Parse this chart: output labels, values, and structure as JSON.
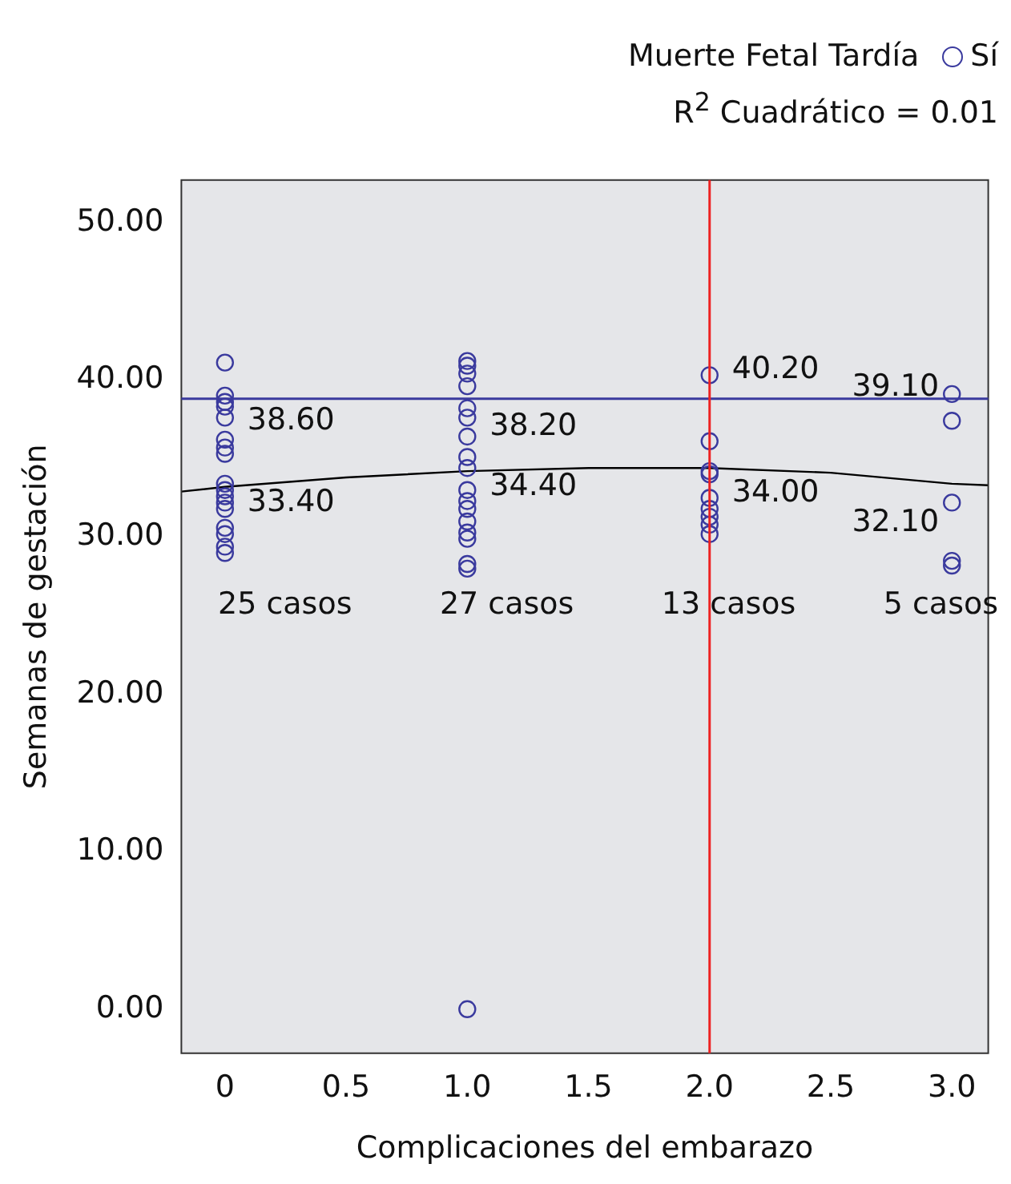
{
  "chart_data": {
    "type": "scatter",
    "xlabel": "Complicaciones del embarazo",
    "ylabel": "Semanas de gestación",
    "legend_title": "Muerte Fetal Tardía",
    "legend": "top right",
    "marker": "circle",
    "grid": false,
    "xlim": [
      -0.18,
      3.15
    ],
    "xticks": [
      0,
      0.5,
      {
        "value": 1,
        "label": "1.0"
      },
      1.5,
      {
        "value": 2,
        "label": "2.0"
      },
      2.5,
      {
        "value": 3,
        "label": "3.0"
      }
    ],
    "ylim": [
      -2.8,
      52.7
    ],
    "yticks": [
      {
        "value": 0,
        "label": "0.00"
      },
      {
        "value": 10,
        "label": "10.00"
      },
      {
        "value": 20,
        "label": "20.00"
      },
      {
        "value": 30,
        "label": "30.00"
      },
      {
        "value": 40,
        "label": "40.00"
      },
      {
        "value": 50,
        "label": "50.00"
      }
    ],
    "series": [
      {
        "name": "Sí",
        "color": "#3a3a9e",
        "x": [
          0,
          0,
          0,
          0,
          0,
          0,
          0,
          0,
          0,
          0,
          0,
          0,
          0,
          0,
          0,
          0,
          0,
          1,
          1,
          1,
          1,
          1,
          1,
          1,
          1,
          1,
          1,
          1,
          1,
          1,
          1,
          1,
          1,
          1,
          1,
          2,
          2,
          2,
          2,
          2,
          2,
          2,
          2,
          2,
          3,
          3,
          3,
          3,
          3
        ],
        "values": [
          41.1,
          39.0,
          38.6,
          38.3,
          37.6,
          36.2,
          35.7,
          35.3,
          33.4,
          33.0,
          32.6,
          32.2,
          31.8,
          30.6,
          30.2,
          29.4,
          29.0,
          41.2,
          40.9,
          40.4,
          39.6,
          38.2,
          37.6,
          36.4,
          35.1,
          34.4,
          33.0,
          32.3,
          31.8,
          31.0,
          30.3,
          28.3,
          28.0,
          0,
          29.9,
          40.3,
          36.1,
          34.2,
          34.0,
          32.5,
          31.8,
          31.3,
          30.8,
          30.2,
          39.1,
          37.4,
          32.2,
          28.5,
          28.2
        ]
      },
      {
        "type": "line",
        "color": "#000000",
        "marker": "none",
        "x": [
          -0.18,
          0,
          0.5,
          1,
          1.5,
          2,
          2.5,
          3,
          3.15
        ],
        "values": [
          32.9,
          33.2,
          33.8,
          34.2,
          34.4,
          34.4,
          34.1,
          33.4,
          33.3
        ]
      }
    ],
    "ref_lines": [
      {
        "axis": "y",
        "value": 38.8,
        "color": "#3a3a9e"
      },
      {
        "axis": "x",
        "value": 2,
        "color": "#ee2222"
      }
    ],
    "annotations": [
      "R$^{2}$ Cuadrático = 0.01",
      {
        "text": "38.60",
        "x": 0,
        "y": 38.6
      },
      {
        "text": "33.40",
        "x": 0,
        "y": 33.4
      },
      {
        "text": "38.20",
        "x": 1,
        "y": 38.2
      },
      {
        "text": "34.40",
        "x": 1,
        "y": 34.4
      },
      {
        "text": "40.20",
        "x": 2,
        "y": 40.2
      },
      {
        "text": "34.00",
        "x": 2,
        "y": 34.0
      },
      {
        "text": "39.10",
        "x": 3,
        "y": 39.1
      },
      {
        "text": "32.10",
        "x": 3,
        "y": 32.1
      },
      "25 casos",
      "27 casos",
      "13 casos",
      "5 casos"
    ]
  }
}
